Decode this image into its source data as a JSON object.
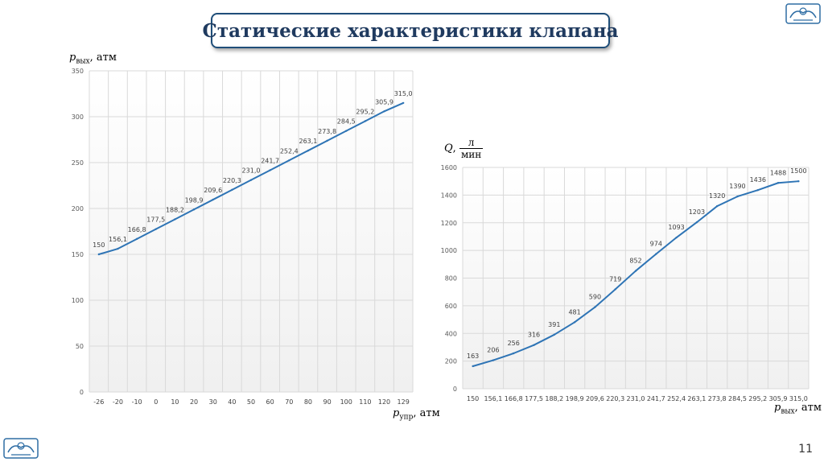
{
  "title": "Статические характеристики клапана",
  "page_number": "11",
  "colors": {
    "accent": "#1f4e79",
    "line": "#2e74b5",
    "grid": "#d9d9d9"
  },
  "logos": [
    "top-right-logo",
    "bottom-left-logo"
  ],
  "chart_data": [
    {
      "type": "line",
      "ylabel": {
        "var": "p",
        "sub": "вых",
        "unit": ", атм"
      },
      "xlabel": {
        "var": "p",
        "sub": "упр",
        "unit": ", атм"
      },
      "ylim": [
        0,
        350
      ],
      "yticks": [
        "0",
        "50",
        "100",
        "150",
        "200",
        "250",
        "300",
        "350"
      ],
      "categories": [
        "-26",
        "-20",
        "-10",
        "0",
        "10",
        "20",
        "30",
        "40",
        "50",
        "60",
        "70",
        "80",
        "90",
        "100",
        "110",
        "120",
        "129"
      ],
      "values": [
        150,
        156.1,
        166.8,
        177.5,
        188.2,
        198.9,
        209.6,
        220.3,
        231.0,
        241.7,
        252.4,
        263.1,
        273.8,
        284.5,
        295.2,
        305.9,
        315.0
      ],
      "labels": [
        "150",
        "156,1",
        "166,8",
        "177,5",
        "188,2",
        "198,9",
        "209,6",
        "220,3",
        "231,0",
        "241,7",
        "252,4",
        "263,1",
        "273,8",
        "284,5",
        "295,2",
        "305,9",
        "315,0"
      ],
      "grid": true
    },
    {
      "type": "line",
      "ylabel": {
        "var": "Q",
        "num": "л",
        "den": "мин"
      },
      "xlabel": {
        "var": "p",
        "sub": "вых",
        "unit": ", атм"
      },
      "ylim": [
        0,
        1600
      ],
      "yticks": [
        "0",
        "200",
        "400",
        "600",
        "800",
        "1000",
        "1200",
        "1400",
        "1600"
      ],
      "categories": [
        "150",
        "156,1",
        "166,8",
        "177,5",
        "188,2",
        "198,9",
        "209,6",
        "220,3",
        "231,0",
        "241,7",
        "252,4",
        "263,1",
        "273,8",
        "284,5",
        "295,2",
        "305,9",
        "315,0"
      ],
      "values": [
        163,
        206,
        256,
        316,
        391,
        481,
        590,
        719,
        852,
        974,
        1093,
        1203,
        1320,
        1390,
        1436,
        1488,
        1500
      ],
      "labels": [
        "163",
        "206",
        "256",
        "316",
        "391",
        "481",
        "590",
        "719",
        "852",
        "974",
        "1093",
        "1203",
        "1320",
        "1390",
        "1436",
        "1488",
        "1500"
      ],
      "grid": true
    }
  ]
}
